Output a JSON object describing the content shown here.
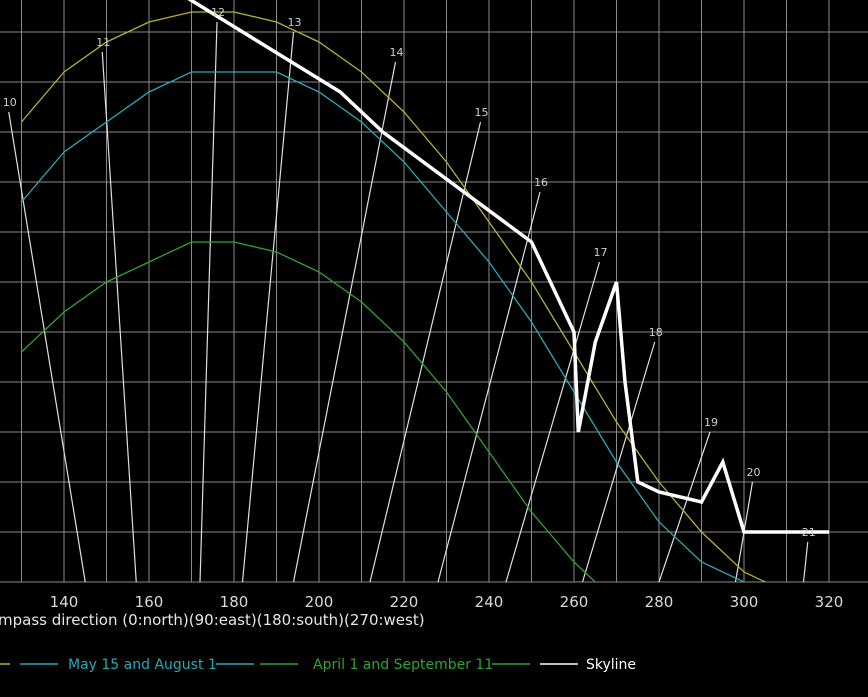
{
  "chart_data": {
    "type": "line",
    "xlabel": "mpass direction (0:north)(90:east)(180:south)(270:west)",
    "xlim": [
      130,
      325
    ],
    "ylim": [
      0,
      57
    ],
    "x_ticks": [
      140,
      160,
      180,
      200,
      220,
      240,
      260,
      280,
      300,
      320
    ],
    "grid": true,
    "legend_placement": "bottom",
    "series": [
      {
        "name": "",
        "color": "#b8b02e",
        "points": [
          [
            130,
            46
          ],
          [
            140,
            51
          ],
          [
            150,
            54
          ],
          [
            160,
            56
          ],
          [
            170,
            57
          ],
          [
            180,
            57
          ],
          [
            190,
            56
          ],
          [
            200,
            54
          ],
          [
            210,
            51
          ],
          [
            220,
            47
          ],
          [
            230,
            42
          ],
          [
            240,
            36
          ],
          [
            250,
            30
          ],
          [
            260,
            23
          ],
          [
            270,
            16
          ],
          [
            280,
            10
          ],
          [
            290,
            5
          ],
          [
            300,
            1
          ],
          [
            305,
            0
          ]
        ]
      },
      {
        "name": "May 15 and August 1",
        "color": "#2aa8b8",
        "points": [
          [
            130,
            38
          ],
          [
            140,
            43
          ],
          [
            150,
            46
          ],
          [
            160,
            49
          ],
          [
            170,
            51
          ],
          [
            180,
            51
          ],
          [
            190,
            51
          ],
          [
            200,
            49
          ],
          [
            210,
            46
          ],
          [
            220,
            42
          ],
          [
            230,
            37
          ],
          [
            240,
            32
          ],
          [
            250,
            26
          ],
          [
            260,
            19
          ],
          [
            270,
            12
          ],
          [
            280,
            6
          ],
          [
            290,
            2
          ],
          [
            300,
            0
          ]
        ]
      },
      {
        "name": "April 1 and September 11",
        "color": "#2fa32f",
        "points": [
          [
            130,
            23
          ],
          [
            140,
            27
          ],
          [
            150,
            30
          ],
          [
            160,
            32
          ],
          [
            170,
            34
          ],
          [
            180,
            34
          ],
          [
            190,
            33
          ],
          [
            200,
            31
          ],
          [
            210,
            28
          ],
          [
            220,
            24
          ],
          [
            230,
            19
          ],
          [
            240,
            13
          ],
          [
            250,
            7
          ],
          [
            260,
            2
          ],
          [
            265,
            0
          ]
        ]
      },
      {
        "name": "Skyline",
        "color": "#ffffff",
        "points": [
          [
            140,
            66
          ],
          [
            205,
            49
          ],
          [
            215,
            45
          ],
          [
            250,
            34
          ],
          [
            260,
            25
          ],
          [
            261,
            15
          ],
          [
            265,
            24
          ],
          [
            270,
            30
          ],
          [
            272,
            20
          ],
          [
            275,
            10
          ],
          [
            280,
            9
          ],
          [
            290,
            8
          ],
          [
            295,
            12
          ],
          [
            300,
            5
          ],
          [
            310,
            5
          ],
          [
            320,
            5
          ]
        ]
      }
    ],
    "hour_lines": [
      {
        "label": "10",
        "top": [
          127,
          47
        ],
        "bottom": [
          145,
          0
        ]
      },
      {
        "label": "11",
        "top": [
          149,
          53
        ],
        "bottom": [
          157,
          0
        ]
      },
      {
        "label": "12",
        "top": [
          176,
          56
        ],
        "bottom": [
          172,
          0
        ]
      },
      {
        "label": "13",
        "top": [
          194,
          55
        ],
        "bottom": [
          182,
          0
        ]
      },
      {
        "label": "14",
        "top": [
          218,
          52
        ],
        "bottom": [
          194,
          0
        ]
      },
      {
        "label": "15",
        "top": [
          238,
          46
        ],
        "bottom": [
          212,
          0
        ]
      },
      {
        "label": "16",
        "top": [
          252,
          39
        ],
        "bottom": [
          228,
          0
        ]
      },
      {
        "label": "17",
        "top": [
          266,
          32
        ],
        "bottom": [
          244,
          0
        ]
      },
      {
        "label": "18",
        "top": [
          279,
          24
        ],
        "bottom": [
          262,
          0
        ]
      },
      {
        "label": "19",
        "top": [
          292,
          15
        ],
        "bottom": [
          280,
          0
        ]
      },
      {
        "label": "20",
        "top": [
          302,
          10
        ],
        "bottom": [
          298,
          0
        ]
      },
      {
        "label": "21",
        "top": [
          315,
          4
        ],
        "bottom": [
          314,
          0
        ]
      }
    ]
  }
}
